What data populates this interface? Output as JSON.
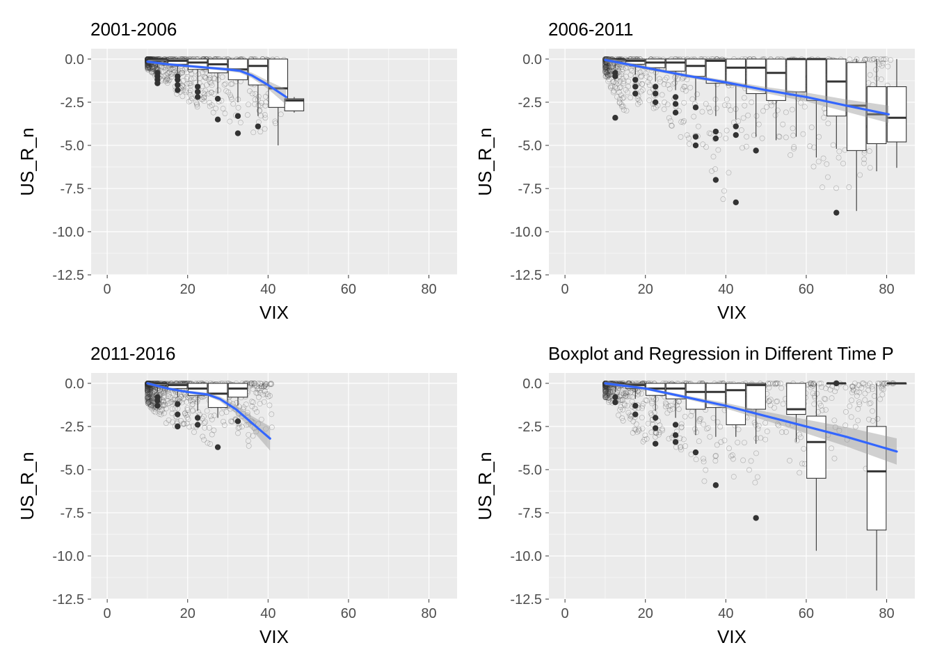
{
  "chart_data": [
    {
      "type": "boxplot+scatter+regression",
      "title": "2001-2006",
      "xlabel": "VIX",
      "ylabel": "US_R_n",
      "xlim": [
        -4,
        87
      ],
      "ylim": [
        -12.5,
        0.6
      ],
      "x_ticks": [
        0,
        20,
        40,
        60,
        80
      ],
      "y_ticks": [
        0.0,
        -2.5,
        -5.0,
        -7.5,
        -10.0,
        -12.5
      ],
      "x_tick_labels": [
        "0",
        "20",
        "40",
        "60",
        "80"
      ],
      "y_tick_labels": [
        "0.0",
        "-2.5",
        "-5.0",
        "-7.5",
        "-10.0",
        "-12.5"
      ],
      "grid": true,
      "scatter_range": {
        "x": [
          10,
          44
        ],
        "y_min_by_x": [
          [
            10,
            -0.6
          ],
          [
            15,
            -1.6
          ],
          [
            20,
            -2.6
          ],
          [
            25,
            -3.0
          ],
          [
            30,
            -3.6
          ],
          [
            35,
            -4.0
          ],
          [
            40,
            -5.0
          ],
          [
            44,
            -3.1
          ]
        ]
      },
      "boxes": [
        {
          "x": 12.5,
          "q1": -0.1,
          "median": 0.0,
          "q3": 0.0,
          "lo": -0.5,
          "hi": 0.0,
          "outliers": [
            -0.8,
            -1.0,
            -1.2,
            -1.4
          ]
        },
        {
          "x": 17.5,
          "q1": -0.3,
          "median": -0.1,
          "q3": 0.0,
          "lo": -0.8,
          "hi": 0.0,
          "outliers": [
            -1.0,
            -1.2,
            -1.5,
            -1.8
          ]
        },
        {
          "x": 22.5,
          "q1": -0.6,
          "median": -0.2,
          "q3": 0.0,
          "lo": -1.4,
          "hi": 0.0,
          "outliers": [
            -1.6,
            -1.9,
            -2.2
          ]
        },
        {
          "x": 27.5,
          "q1": -0.8,
          "median": -0.3,
          "q3": 0.0,
          "lo": -2.0,
          "hi": 0.0,
          "outliers": [
            -2.3,
            -3.5
          ]
        },
        {
          "x": 32.5,
          "q1": -1.2,
          "median": -0.6,
          "q3": 0.0,
          "lo": -2.5,
          "hi": 0.0,
          "outliers": [
            -3.3,
            -4.3
          ]
        },
        {
          "x": 37.5,
          "q1": -1.5,
          "median": -0.4,
          "q3": 0.0,
          "lo": -3.3,
          "hi": 0.0,
          "outliers": [
            -3.9
          ]
        },
        {
          "x": 42.5,
          "q1": -2.8,
          "median": -1.7,
          "q3": 0.0,
          "lo": -5.0,
          "hi": 0.0,
          "outliers": []
        },
        {
          "x": 46.5,
          "q1": -3.0,
          "median": -2.4,
          "q3": -2.3,
          "lo": -3.1,
          "hi": -2.2,
          "outliers": []
        }
      ],
      "fit": {
        "x": [
          10,
          15,
          20,
          25,
          30,
          33,
          36,
          40,
          44.5
        ],
        "y": [
          -0.15,
          -0.3,
          -0.4,
          -0.5,
          -0.6,
          -0.68,
          -0.95,
          -1.5,
          -2.2
        ]
      },
      "fit_band_halfwidth": [
        0.05,
        0.04,
        0.04,
        0.04,
        0.05,
        0.06,
        0.08,
        0.12,
        0.22
      ]
    },
    {
      "type": "boxplot+scatter+regression",
      "title": "2006-2011",
      "xlabel": "VIX",
      "ylabel": "US_R_n",
      "xlim": [
        -4,
        87
      ],
      "ylim": [
        -12.5,
        0.6
      ],
      "x_ticks": [
        0,
        20,
        40,
        60,
        80
      ],
      "y_ticks": [
        0.0,
        -2.5,
        -5.0,
        -7.5,
        -10.0,
        -12.5
      ],
      "x_tick_labels": [
        "0",
        "20",
        "40",
        "60",
        "80"
      ],
      "y_tick_labels": [
        "0.0",
        "-2.5",
        "-5.0",
        "-7.5",
        "-10.0",
        "-12.5"
      ],
      "grid": true,
      "scatter_range": {
        "x": [
          10,
          81
        ],
        "y_min_by_x": [
          [
            10,
            -1.0
          ],
          [
            15,
            -3.4
          ],
          [
            20,
            -2.5
          ],
          [
            25,
            -3.4
          ],
          [
            30,
            -5.0
          ],
          [
            35,
            -7.0
          ],
          [
            40,
            -8.3
          ],
          [
            45,
            -5.3
          ],
          [
            50,
            -4.5
          ],
          [
            55,
            -5.8
          ],
          [
            60,
            -5.4
          ],
          [
            65,
            -8.9
          ],
          [
            70,
            -8.8
          ],
          [
            75,
            -6.5
          ],
          [
            80,
            -6.3
          ]
        ]
      },
      "boxes": [
        {
          "x": 12.5,
          "q1": -0.1,
          "median": 0.0,
          "q3": 0.0,
          "lo": -0.5,
          "hi": 0.0,
          "outliers": [
            -0.8,
            -1.0,
            -3.4
          ]
        },
        {
          "x": 17.5,
          "q1": -0.3,
          "median": -0.1,
          "q3": 0.0,
          "lo": -0.9,
          "hi": 0.0,
          "outliers": [
            -1.2,
            -1.6,
            -2.0
          ]
        },
        {
          "x": 22.5,
          "q1": -0.5,
          "median": -0.2,
          "q3": 0.0,
          "lo": -1.3,
          "hi": 0.0,
          "outliers": [
            -1.6,
            -2.0,
            -2.5
          ]
        },
        {
          "x": 27.5,
          "q1": -0.7,
          "median": -0.2,
          "q3": 0.0,
          "lo": -1.8,
          "hi": 0.0,
          "outliers": [
            -2.2,
            -2.6,
            -3.1
          ]
        },
        {
          "x": 32.5,
          "q1": -1.0,
          "median": -0.4,
          "q3": 0.0,
          "lo": -2.4,
          "hi": 0.0,
          "outliers": [
            -2.8,
            -4.5,
            -5.0
          ]
        },
        {
          "x": 37.5,
          "q1": -1.4,
          "median": -0.1,
          "q3": 0.0,
          "lo": -3.3,
          "hi": 0.0,
          "outliers": [
            -4.2,
            -4.6,
            -7.0
          ]
        },
        {
          "x": 42.5,
          "q1": -1.5,
          "median": -0.5,
          "q3": 0.0,
          "lo": -3.5,
          "hi": 0.0,
          "outliers": [
            -3.9,
            -4.4,
            -8.3
          ]
        },
        {
          "x": 47.5,
          "q1": -2.0,
          "median": -0.5,
          "q3": 0.0,
          "lo": -4.5,
          "hi": 0.0,
          "outliers": [
            -5.3
          ]
        },
        {
          "x": 52.5,
          "q1": -2.4,
          "median": -0.8,
          "q3": 0.0,
          "lo": -4.7,
          "hi": 0.0,
          "outliers": []
        },
        {
          "x": 57.5,
          "q1": -1.9,
          "median": 0.0,
          "q3": 0.0,
          "lo": -4.5,
          "hi": 0.0,
          "outliers": []
        },
        {
          "x": 62.5,
          "q1": -2.4,
          "median": 0.0,
          "q3": 0.0,
          "lo": -5.7,
          "hi": 0.0,
          "outliers": []
        },
        {
          "x": 67.5,
          "q1": -3.3,
          "median": -1.3,
          "q3": 0.0,
          "lo": -5.2,
          "hi": 0.0,
          "outliers": [
            -8.9
          ]
        },
        {
          "x": 72.5,
          "q1": -5.3,
          "median": -2.7,
          "q3": -0.2,
          "lo": -8.8,
          "hi": 0.0,
          "outliers": []
        },
        {
          "x": 77.5,
          "q1": -4.9,
          "median": -3.2,
          "q3": -1.6,
          "lo": -6.5,
          "hi": 0.0,
          "outliers": []
        },
        {
          "x": 82.5,
          "q1": -4.8,
          "median": -3.4,
          "q3": -1.6,
          "lo": -6.3,
          "hi": 0.0,
          "outliers": []
        }
      ],
      "fit": {
        "x": [
          10,
          20,
          30,
          40,
          50,
          60,
          70,
          80.5
        ],
        "y": [
          -0.05,
          -0.5,
          -0.95,
          -1.35,
          -1.8,
          -2.2,
          -2.7,
          -3.2
        ]
      },
      "fit_band_halfwidth": [
        0.08,
        0.05,
        0.05,
        0.06,
        0.09,
        0.13,
        0.18,
        0.25
      ]
    },
    {
      "type": "boxplot+scatter+regression",
      "title": "2011-2016",
      "xlabel": "VIX",
      "ylabel": "US_R_n",
      "xlim": [
        -4,
        87
      ],
      "ylim": [
        -12.5,
        0.6
      ],
      "x_ticks": [
        0,
        20,
        40,
        60,
        80
      ],
      "y_ticks": [
        0.0,
        -2.5,
        -5.0,
        -7.5,
        -10.0,
        -12.5
      ],
      "x_tick_labels": [
        "0",
        "20",
        "40",
        "60",
        "80"
      ],
      "y_tick_labels": [
        "0.0",
        "-2.5",
        "-5.0",
        "-7.5",
        "-10.0",
        "-12.5"
      ],
      "grid": true,
      "scatter_range": {
        "x": [
          10,
          41
        ],
        "y_min_by_x": [
          [
            10,
            -1.2
          ],
          [
            15,
            -2.5
          ],
          [
            20,
            -2.5
          ],
          [
            25,
            -3.7
          ],
          [
            30,
            -2.2
          ],
          [
            36,
            -3.9
          ],
          [
            40,
            -3.0
          ]
        ]
      },
      "boxes": [
        {
          "x": 12.5,
          "q1": -0.1,
          "median": 0.0,
          "q3": 0.0,
          "lo": -0.5,
          "hi": 0.0,
          "outliers": [
            -0.8,
            -1.0,
            -1.3
          ]
        },
        {
          "x": 17.5,
          "q1": -0.3,
          "median": -0.1,
          "q3": 0.0,
          "lo": -0.8,
          "hi": 0.0,
          "outliers": [
            -1.2,
            -1.8,
            -2.5
          ]
        },
        {
          "x": 22.5,
          "q1": -0.7,
          "median": -0.3,
          "q3": 0.0,
          "lo": -1.6,
          "hi": 0.0,
          "outliers": [
            -2.0,
            -2.4
          ]
        },
        {
          "x": 27.5,
          "q1": -1.4,
          "median": -0.6,
          "q3": 0.0,
          "lo": -2.0,
          "hi": 0.0,
          "outliers": [
            -3.7
          ]
        },
        {
          "x": 32.5,
          "q1": -0.8,
          "median": -0.3,
          "q3": 0.0,
          "lo": -1.3,
          "hi": 0.0,
          "outliers": [
            -2.2
          ]
        }
      ],
      "fit": {
        "x": [
          10,
          15,
          20,
          25,
          28,
          32,
          36,
          40.5
        ],
        "y": [
          0.0,
          -0.3,
          -0.5,
          -0.65,
          -0.9,
          -1.5,
          -2.3,
          -3.2
        ]
      },
      "fit_band_halfwidth": [
        0.05,
        0.04,
        0.04,
        0.05,
        0.07,
        0.12,
        0.2,
        0.35
      ]
    },
    {
      "type": "boxplot+scatter+regression",
      "title": "Boxplot and Regression in Different Time P",
      "xlabel": "VIX",
      "ylabel": "US_R_n",
      "xlim": [
        -4,
        87
      ],
      "ylim": [
        -12.5,
        0.6
      ],
      "x_ticks": [
        0,
        20,
        40,
        60,
        80
      ],
      "y_ticks": [
        0.0,
        -2.5,
        -5.0,
        -7.5,
        -10.0,
        -12.5
      ],
      "x_tick_labels": [
        "0",
        "20",
        "40",
        "60",
        "80"
      ],
      "y_tick_labels": [
        "0.0",
        "-2.5",
        "-5.0",
        "-7.5",
        "-10.0",
        "-12.5"
      ],
      "grid": true,
      "scatter_range": {
        "x": [
          10,
          82
        ],
        "y_min_by_x": [
          [
            10,
            -0.8
          ],
          [
            15,
            -2.5
          ],
          [
            20,
            -3.5
          ],
          [
            25,
            -3.4
          ],
          [
            30,
            -4.0
          ],
          [
            35,
            -5.9
          ],
          [
            40,
            -4.2
          ],
          [
            45,
            -7.8
          ],
          [
            50,
            -4.5
          ],
          [
            55,
            -3.0
          ],
          [
            58,
            -9.7
          ],
          [
            62,
            -4.3
          ],
          [
            70,
            -5.5
          ],
          [
            75,
            -5.1
          ],
          [
            80,
            0.0
          ]
        ]
      },
      "boxes": [
        {
          "x": 12.5,
          "q1": -0.1,
          "median": 0.0,
          "q3": 0.0,
          "lo": -0.5,
          "hi": 0.0,
          "outliers": [
            -0.8,
            -1.1
          ]
        },
        {
          "x": 17.5,
          "q1": -0.3,
          "median": -0.1,
          "q3": 0.0,
          "lo": -0.9,
          "hi": 0.0,
          "outliers": [
            -1.3,
            -1.8
          ]
        },
        {
          "x": 22.5,
          "q1": -0.7,
          "median": -0.3,
          "q3": 0.0,
          "lo": -1.6,
          "hi": 0.0,
          "outliers": [
            -2.0,
            -2.6,
            -3.5
          ]
        },
        {
          "x": 27.5,
          "q1": -0.9,
          "median": -0.3,
          "q3": 0.0,
          "lo": -2.0,
          "hi": 0.0,
          "outliers": [
            -2.4,
            -3.0,
            -3.4
          ]
        },
        {
          "x": 32.5,
          "q1": -1.5,
          "median": -0.5,
          "q3": 0.0,
          "lo": -3.0,
          "hi": 0.0,
          "outliers": [
            -4.0
          ]
        },
        {
          "x": 37.5,
          "q1": -1.4,
          "median": -0.5,
          "q3": 0.0,
          "lo": -3.1,
          "hi": 0.0,
          "outliers": [
            -5.9
          ]
        },
        {
          "x": 42.5,
          "q1": -2.4,
          "median": -0.4,
          "q3": 0.0,
          "lo": -3.1,
          "hi": 0.0,
          "outliers": []
        },
        {
          "x": 47.5,
          "q1": -1.5,
          "median": -0.1,
          "q3": 0.0,
          "lo": -3.5,
          "hi": 0.0,
          "outliers": [
            -7.8
          ]
        },
        {
          "x": 57.5,
          "q1": -1.8,
          "median": -1.5,
          "q3": 0.0,
          "lo": -3.4,
          "hi": 0.0,
          "outliers": []
        },
        {
          "x": 62.5,
          "q1": -5.5,
          "median": -3.4,
          "q3": -1.9,
          "lo": -9.7,
          "hi": 0.0,
          "outliers": []
        },
        {
          "x": 67.5,
          "q1": 0.0,
          "median": 0.0,
          "q3": 0.0,
          "lo": 0.0,
          "hi": 0.0,
          "outliers": [
            0.0
          ]
        },
        {
          "x": 77.5,
          "q1": -8.5,
          "median": -5.1,
          "q3": -2.5,
          "lo": -12.0,
          "hi": 0.0,
          "outliers": []
        },
        {
          "x": 82.5,
          "q1": 0.0,
          "median": 0.0,
          "q3": 0.0,
          "lo": 0.0,
          "hi": 0.0,
          "outliers": []
        }
      ],
      "fit": {
        "x": [
          10,
          20,
          30,
          40,
          50,
          60,
          70,
          82.5
        ],
        "y": [
          0.0,
          -0.3,
          -0.8,
          -1.3,
          -1.9,
          -2.5,
          -3.1,
          -3.95
        ]
      },
      "fit_band_halfwidth": [
        0.06,
        0.04,
        0.05,
        0.08,
        0.13,
        0.2,
        0.28,
        0.38
      ]
    }
  ],
  "colors": {
    "panel_background": "#ebebeb",
    "grid": "#ffffff",
    "box_fill": "#ffffff",
    "box_stroke": "#333333",
    "point": "#333333",
    "fit_line": "#3366ff",
    "fit_band": "#999999",
    "axis_text": "#4d4d4d",
    "title_text": "#000000"
  }
}
